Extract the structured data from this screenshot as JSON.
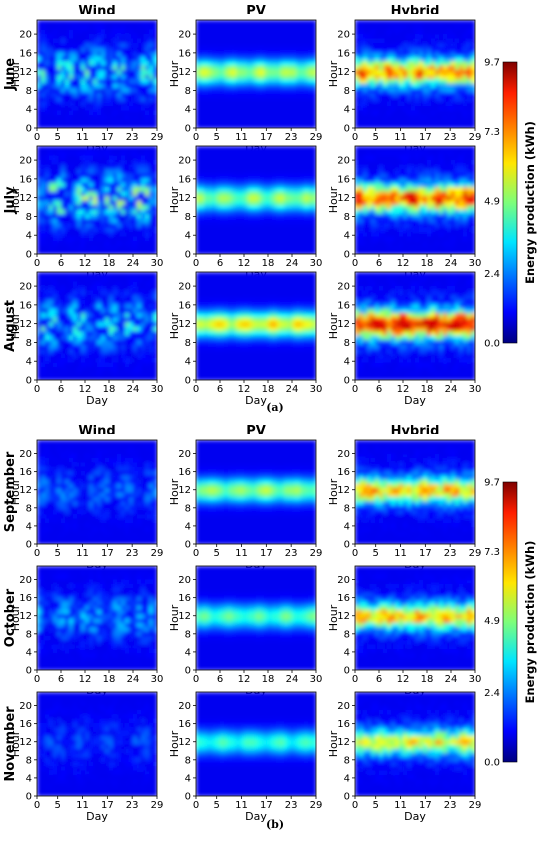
{
  "chart_data": {
    "type": "heatmap",
    "panels": [
      {
        "label": "(a)",
        "columns": [
          "Wind",
          "PV",
          "Hybrid"
        ],
        "rows": [
          {
            "month": "June",
            "day_ticks": [
              "0",
              "5",
              "11",
              "17",
              "23",
              "29"
            ],
            "xlim": [
              0,
              29
            ]
          },
          {
            "month": "July",
            "day_ticks": [
              "0",
              "6",
              "12",
              "18",
              "24",
              "30"
            ],
            "xlim": [
              0,
              30
            ]
          },
          {
            "month": "August",
            "day_ticks": [
              "0",
              "6",
              "12",
              "18",
              "24",
              "30"
            ],
            "xlim": [
              0,
              30
            ]
          }
        ]
      },
      {
        "label": "(b)",
        "columns": [
          "Wind",
          "PV",
          "Hybrid"
        ],
        "rows": [
          {
            "month": "September",
            "day_ticks": [
              "0",
              "5",
              "11",
              "17",
              "23",
              "29"
            ],
            "xlim": [
              0,
              29
            ]
          },
          {
            "month": "October",
            "day_ticks": [
              "0",
              "6",
              "12",
              "18",
              "24",
              "30"
            ],
            "xlim": [
              0,
              30
            ]
          },
          {
            "month": "November",
            "day_ticks": [
              "0",
              "5",
              "11",
              "17",
              "23",
              "29"
            ],
            "xlim": [
              0,
              29
            ]
          }
        ]
      }
    ],
    "xlabel": "Day",
    "ylabel": "Hour",
    "hour_ticks": [
      "0",
      "4",
      "8",
      "12",
      "16",
      "20"
    ],
    "ylim": [
      0,
      23
    ],
    "colorbar": {
      "label": "Energy production (kWh)",
      "ticks": [
        "0.0",
        "2.4",
        "4.9",
        "7.3",
        "9.7"
      ],
      "range": [
        0.0,
        9.7
      ],
      "colormap": "jet"
    },
    "intensity": {
      "June": {
        "Wind": 0.3,
        "PV": 0.48,
        "Hybrid": 0.62
      },
      "July": {
        "Wind": 0.38,
        "PV": 0.45,
        "Hybrid": 0.7
      },
      "August": {
        "Wind": 0.3,
        "PV": 0.58,
        "Hybrid": 0.85
      },
      "September": {
        "Wind": 0.14,
        "PV": 0.45,
        "Hybrid": 0.55
      },
      "October": {
        "Wind": 0.2,
        "PV": 0.38,
        "Hybrid": 0.55
      },
      "November": {
        "Wind": 0.1,
        "PV": 0.35,
        "Hybrid": 0.48
      }
    }
  }
}
